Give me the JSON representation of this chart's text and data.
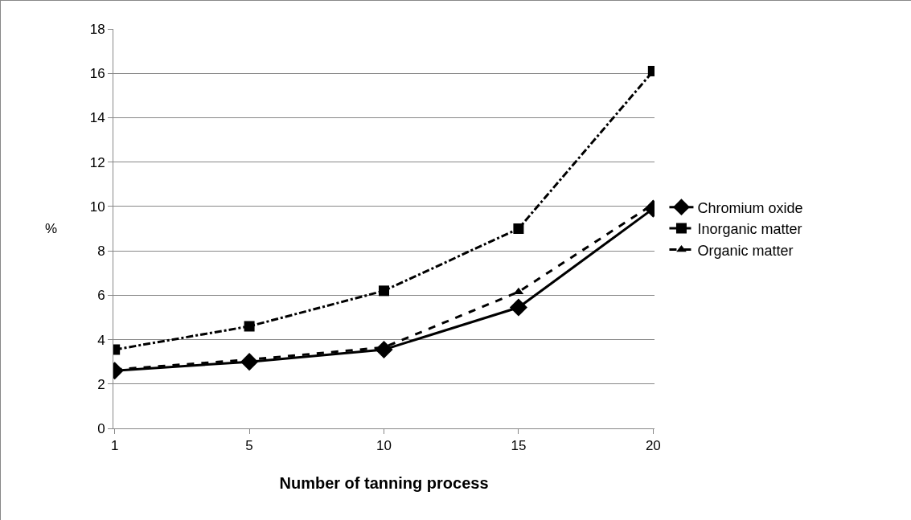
{
  "chart_data": {
    "type": "line",
    "xlabel": "Number of tanning process",
    "ylabel": "%",
    "categories": [
      "1",
      "5",
      "10",
      "15",
      "20"
    ],
    "series": [
      {
        "name": "Chromium oxide",
        "color": "#000000",
        "marker": "diamond",
        "line_style": "solid",
        "values": [
          2.6,
          3.0,
          3.55,
          5.45,
          9.9
        ]
      },
      {
        "name": "Inorganic matter",
        "color": "#000000",
        "marker": "square",
        "line_style": "dashdot",
        "values": [
          3.55,
          4.6,
          6.2,
          9.0,
          16.1
        ]
      },
      {
        "name": "Organic matter",
        "color": "#000000",
        "marker": "triangle",
        "line_style": "dashed",
        "values": [
          2.65,
          3.1,
          3.65,
          6.15,
          10.1
        ]
      }
    ],
    "ylim": [
      0,
      18
    ],
    "yticks": [
      0,
      2,
      4,
      6,
      8,
      10,
      12,
      14,
      16,
      18
    ],
    "grid": "y",
    "legend": "right"
  }
}
